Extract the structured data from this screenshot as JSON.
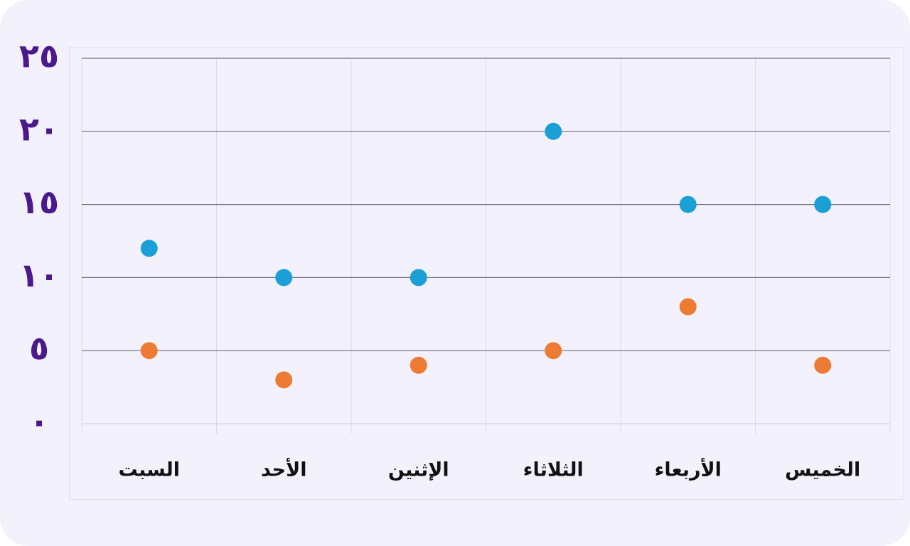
{
  "chart_data": {
    "type": "scatter",
    "categories": [
      "السبت",
      "الأحد",
      "الإثنين",
      "الثلاثاء",
      "الأربعاء",
      "الخميس"
    ],
    "series": [
      {
        "color": "#1a9fd6",
        "values": [
          12,
          10,
          10,
          20,
          15,
          15
        ]
      },
      {
        "color": "#ee7b33",
        "values": [
          5,
          3,
          4,
          5,
          8,
          4
        ]
      }
    ],
    "ylim": [
      0,
      25
    ],
    "yticks": [
      {
        "value": 0,
        "label": "٠"
      },
      {
        "value": 5,
        "label": "٥"
      },
      {
        "value": 10,
        "label": "١٠"
      },
      {
        "value": 15,
        "label": "١٥"
      },
      {
        "value": 20,
        "label": "٢٠"
      },
      {
        "value": 25,
        "label": "٢٥"
      }
    ],
    "grid": true
  }
}
